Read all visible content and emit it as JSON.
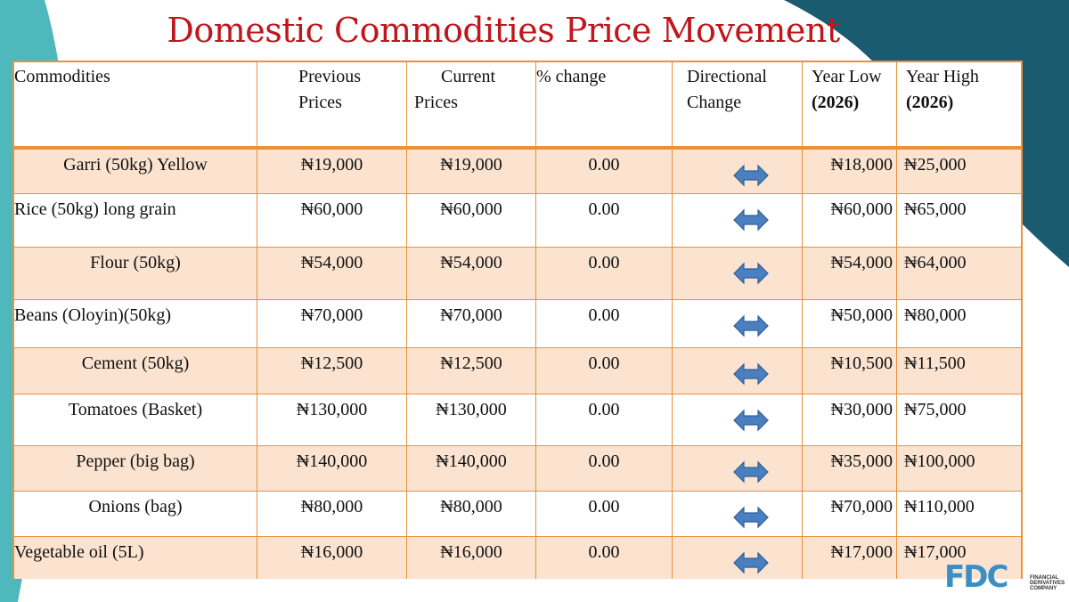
{
  "title": "Domestic Commodities Price Movement",
  "colors": {
    "title": "#c0161d",
    "border": "#e8923a",
    "shade": "#fbe3d0",
    "arrow": "#4a7fc0",
    "teal": "#1b5b70"
  },
  "header": {
    "commodities": "Commodities",
    "previous_line1": "Previous",
    "previous_line2": "Prices",
    "current_line1": "Current",
    "current_line2": "Prices",
    "pct_change": "% change",
    "directional_line1": "Directional",
    "directional_line2": "Change",
    "year_low_line1": "Year Low",
    "year_low_line2": "(2026)",
    "year_high_line1": "Year High",
    "year_high_line2": "(2026)"
  },
  "rows": [
    {
      "name": "Garri (50kg) Yellow",
      "previous": "₦19,000",
      "current": "₦19,000",
      "change": "0.00",
      "direction": "bidirectional-arrow-icon",
      "low": "₦18,000",
      "high": "₦25,000"
    },
    {
      "name": "Rice (50kg) long grain",
      "previous": "₦60,000",
      "current": "₦60,000",
      "change": "0.00",
      "direction": "bidirectional-arrow-icon",
      "low": "₦60,000",
      "high": "₦65,000"
    },
    {
      "name": "Flour (50kg)",
      "previous": "₦54,000",
      "current": "₦54,000",
      "change": "0.00",
      "direction": "bidirectional-arrow-icon",
      "low": "₦54,000",
      "high": "₦64,000"
    },
    {
      "name": "Beans (Oloyin)(50kg)",
      "previous": "₦70,000",
      "current": "₦70,000",
      "change": "0.00",
      "direction": "bidirectional-arrow-icon",
      "low": "₦50,000",
      "high": "₦80,000"
    },
    {
      "name": "Cement (50kg)",
      "previous": "₦12,500",
      "current": "₦12,500",
      "change": "0.00",
      "direction": "bidirectional-arrow-icon",
      "low": "₦10,500",
      "high": "₦11,500"
    },
    {
      "name": "Tomatoes (Basket)",
      "previous": "₦130,000",
      "current": "₦130,000",
      "change": "0.00",
      "direction": "bidirectional-arrow-icon",
      "low": "₦30,000",
      "high": "₦75,000"
    },
    {
      "name": "Pepper (big bag)",
      "previous": "₦140,000",
      "current": "₦140,000",
      "change": "0.00",
      "direction": "bidirectional-arrow-icon",
      "low": "₦35,000",
      "high": "₦100,000"
    },
    {
      "name": "Onions (bag)",
      "previous": "₦80,000",
      "current": "₦80,000",
      "change": "0.00",
      "direction": "bidirectional-arrow-icon",
      "low": "₦70,000",
      "high": "₦110,000"
    },
    {
      "name": "Vegetable oil (5L)",
      "previous": "₦16,000",
      "current": "₦16,000",
      "change": "0.00",
      "direction": "bidirectional-arrow-icon",
      "low": "₦17,000",
      "high": "₦17,000"
    }
  ],
  "logo": {
    "mark": "FDC",
    "line1": "FINANCIAL",
    "line2": "DERIVATIVES",
    "line3": "COMPANY"
  }
}
